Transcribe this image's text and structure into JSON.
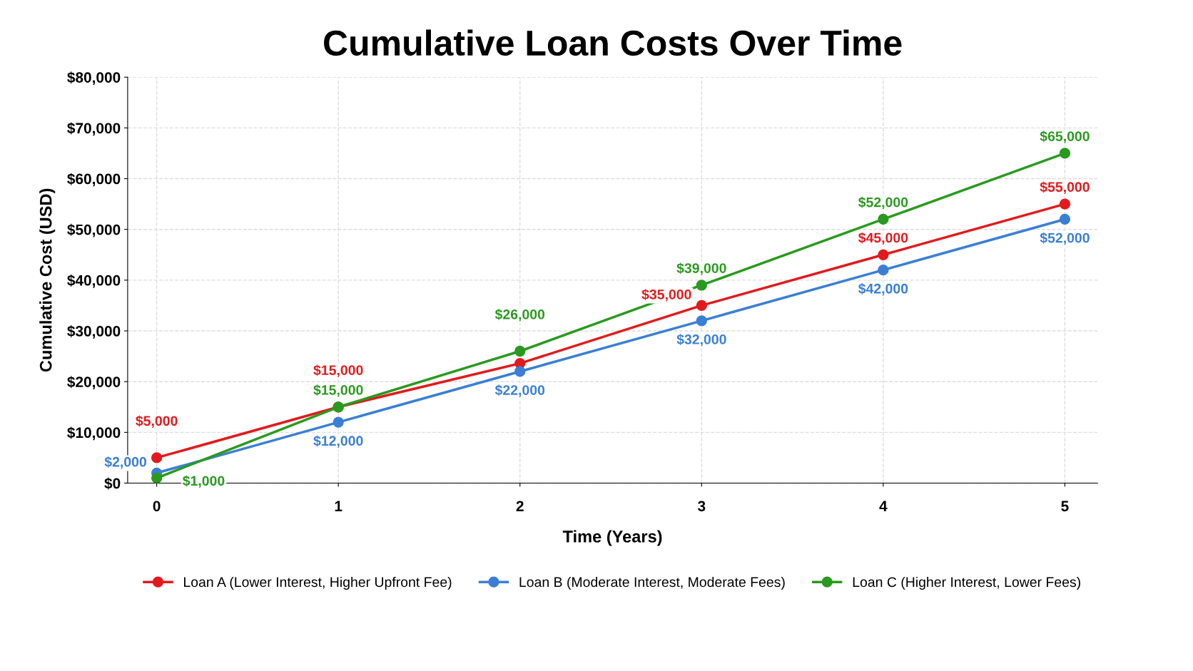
{
  "chart_data": {
    "type": "line",
    "title": "Cumulative Loan Costs Over Time",
    "xlabel": "Time (Years)",
    "ylabel": "Cumulative Cost (USD)",
    "x": [
      0,
      1,
      2,
      3,
      4,
      5
    ],
    "series": [
      {
        "name": "Loan A (Lower Interest, Higher Upfront Fee)",
        "color": "#e31a1c",
        "values": [
          5000,
          15000,
          23600,
          35000,
          45000,
          55000
        ],
        "value_labels": [
          "$5,000",
          "$15,000",
          null,
          "$35,000",
          "$45,000",
          "$55,000"
        ]
      },
      {
        "name": "Loan B (Moderate Interest, Moderate Fees)",
        "color": "#3a7fd5",
        "values": [
          2000,
          12000,
          22000,
          32000,
          42000,
          52000
        ],
        "value_labels": [
          "$2,000",
          "$12,000",
          "$22,000",
          "$32,000",
          "$42,000",
          "$52,000"
        ]
      },
      {
        "name": "Loan C (Higher Interest, Lower Fees)",
        "color": "#2a9a1f",
        "values": [
          1000,
          15000,
          26000,
          39000,
          52000,
          65000
        ],
        "value_labels": [
          "$1,000",
          "$15,000",
          "$26,000",
          "$39,000",
          "$52,000",
          "$65,000"
        ]
      }
    ],
    "xlim": [
      -0.16,
      5.18
    ],
    "xticks": [
      0,
      1,
      2,
      3,
      4,
      5
    ],
    "ylim": [
      0,
      80000
    ],
    "yticks": [
      {
        "value": 0,
        "label": "$0"
      },
      {
        "value": 10000,
        "label": "$10,000"
      },
      {
        "value": 20000,
        "label": "$20,000"
      },
      {
        "value": 30000,
        "label": "$30,000"
      },
      {
        "value": 40000,
        "label": "$40,000"
      },
      {
        "value": 50000,
        "label": "$50,000"
      },
      {
        "value": 60000,
        "label": "$60,000"
      },
      {
        "value": 70000,
        "label": "$70,000"
      },
      {
        "value": 80000,
        "label": "$80,000"
      }
    ],
    "grid": true,
    "legend": "bottom",
    "marker": "circle",
    "line_style": "solid"
  }
}
